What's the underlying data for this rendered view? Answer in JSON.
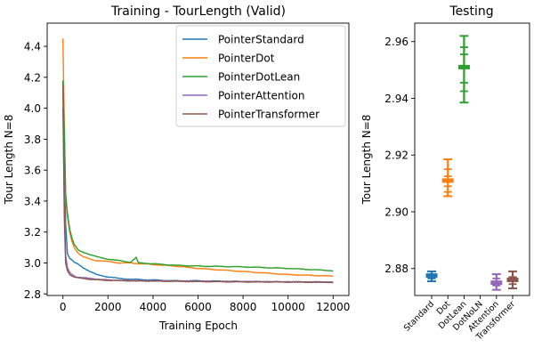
{
  "chart_data": [
    {
      "type": "line",
      "title": "Training - TourLength (Valid)",
      "xlabel": "Training Epoch",
      "ylabel": "Tour Length N=8",
      "xlim": [
        -700,
        12700
      ],
      "ylim": [
        2.79,
        4.55
      ],
      "xticks": [
        0,
        2000,
        4000,
        6000,
        8000,
        10000,
        12000
      ],
      "xtick_labels": [
        "0",
        "2000",
        "4000",
        "6000",
        "8000",
        "10000",
        "12000"
      ],
      "yticks": [
        2.8,
        3.0,
        3.2,
        3.4,
        3.6,
        3.8,
        4.0,
        4.2,
        4.4
      ],
      "ytick_labels": [
        "2.8",
        "3.0",
        "3.2",
        "3.4",
        "3.6",
        "3.8",
        "4.0",
        "4.2",
        "4.4"
      ],
      "grid": false,
      "legend_position": "top-right",
      "series": [
        {
          "name": "PointerStandard",
          "color": "#1f77b4",
          "x": [
            0,
            60,
            120,
            200,
            300,
            400,
            500,
            700,
            900,
            1200,
            1500,
            2000,
            2500,
            3000,
            4000,
            5000,
            6000,
            8000,
            10000,
            12000
          ],
          "y": [
            4.17,
            3.7,
            3.25,
            3.06,
            3.03,
            3.02,
            3.005,
            2.99,
            2.97,
            2.945,
            2.925,
            2.91,
            2.9,
            2.895,
            2.89,
            2.885,
            2.885,
            2.88,
            2.878,
            2.877
          ]
        },
        {
          "name": "PointerDot",
          "color": "#ff7f0e",
          "x": [
            0,
            60,
            120,
            200,
            300,
            400,
            500,
            700,
            900,
            1200,
            1500,
            2000,
            2500,
            3000,
            4000,
            5000,
            6000,
            8000,
            10000,
            12000
          ],
          "y": [
            4.45,
            3.9,
            3.42,
            3.3,
            3.2,
            3.14,
            3.1,
            3.06,
            3.04,
            3.025,
            3.015,
            3.01,
            3.0,
            3.0,
            2.99,
            2.98,
            2.965,
            2.945,
            2.925,
            2.915
          ]
        },
        {
          "name": "PointerDotLean",
          "color": "#2ca02c",
          "x": [
            0,
            60,
            120,
            200,
            300,
            400,
            500,
            700,
            900,
            1200,
            1500,
            2000,
            2500,
            3000,
            3250,
            3350,
            3500,
            4000,
            5000,
            6000,
            8000,
            10000,
            12000
          ],
          "y": [
            4.18,
            3.85,
            3.45,
            3.32,
            3.22,
            3.16,
            3.12,
            3.08,
            3.07,
            3.055,
            3.04,
            3.025,
            3.015,
            3.005,
            3.035,
            3.0,
            3.0,
            2.995,
            2.985,
            2.98,
            2.975,
            2.965,
            2.95
          ]
        },
        {
          "name": "PointerAttention",
          "color": "#9467bd",
          "x": [
            0,
            60,
            120,
            200,
            300,
            400,
            600,
            900,
            1200,
            1600,
            2000,
            3000,
            4000,
            6000,
            8000,
            10000,
            12000
          ],
          "y": [
            4.0,
            3.4,
            3.05,
            2.97,
            2.94,
            2.925,
            2.91,
            2.905,
            2.9,
            2.895,
            2.89,
            2.885,
            2.885,
            2.882,
            2.88,
            2.878,
            2.876
          ]
        },
        {
          "name": "PointerTransformer",
          "color": "#8c564b",
          "x": [
            0,
            60,
            120,
            200,
            300,
            400,
            600,
            900,
            1200,
            1600,
            2000,
            3000,
            4000,
            6000,
            8000,
            10000,
            12000
          ],
          "y": [
            4.15,
            3.3,
            3.0,
            2.95,
            2.925,
            2.915,
            2.905,
            2.9,
            2.895,
            2.89,
            2.888,
            2.885,
            2.883,
            2.88,
            2.878,
            2.877,
            2.875
          ]
        }
      ]
    },
    {
      "type": "errorbar",
      "title": "Testing",
      "ylabel": "Tour Length N=8",
      "categories": [
        "Standard",
        "Dot",
        "DotLean",
        "DotNoLN",
        "Attention",
        "Transformer"
      ],
      "ylim": [
        2.8705,
        2.9665
      ],
      "yticks": [
        2.88,
        2.9,
        2.92,
        2.94,
        2.96
      ],
      "ytick_labels": [
        "2.88",
        "2.90",
        "2.92",
        "2.94",
        "2.96"
      ],
      "grid": false,
      "points": [
        {
          "category": "Standard",
          "color": "#1f77b4",
          "mean": 2.8775,
          "low": 2.8755,
          "high": 2.879,
          "inner": [
            2.8765,
            2.878
          ]
        },
        {
          "category": "Dot",
          "color": "#ff7f0e",
          "mean": 2.911,
          "low": 2.9055,
          "high": 2.9185,
          "inner": [
            2.907,
            2.909,
            2.9125,
            2.915
          ]
        },
        {
          "category": "DotLean",
          "color": "#2ca02c",
          "mean": 2.951,
          "low": 2.9385,
          "high": 2.962,
          "inner": [
            2.9425,
            2.9455,
            2.9555,
            2.958
          ]
        },
        {
          "category": "Attention",
          "color": "#9467bd",
          "mean": 2.875,
          "low": 2.8725,
          "high": 2.878,
          "inner": [
            2.874,
            2.8765
          ]
        },
        {
          "category": "Transformer",
          "color": "#8c564b",
          "mean": 2.876,
          "low": 2.873,
          "high": 2.879,
          "inner": [
            2.8745,
            2.877
          ]
        }
      ]
    }
  ]
}
